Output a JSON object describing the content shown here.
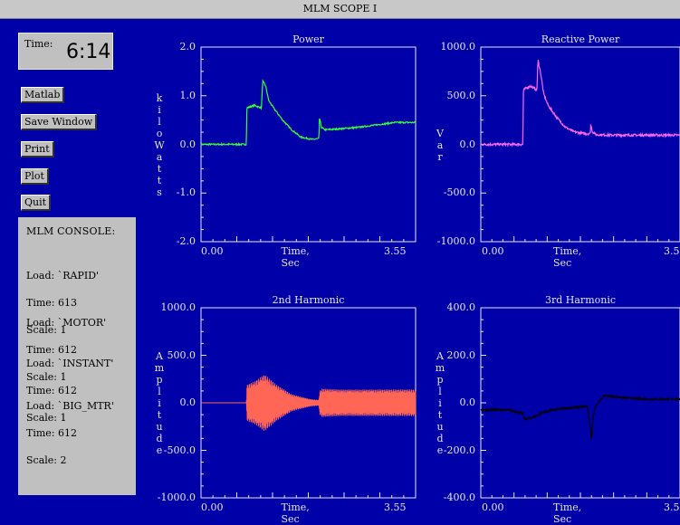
{
  "window": {
    "title": "MLM SCOPE I"
  },
  "clock": {
    "label": "Time:",
    "value": "6:14"
  },
  "buttons": {
    "matlab": "Matlab",
    "save_window": "Save Window",
    "print": "Print",
    "plot": "Plot",
    "quit": "Quit"
  },
  "console": {
    "title": "MLM CONSOLE:",
    "entries": [
      {
        "load": "Load: `RAPID'",
        "time": "Time: 613",
        "scale": "Scale: 1"
      },
      {
        "load": "Load: `MOTOR'",
        "time": "Time: 612",
        "scale": "Scale: 1"
      },
      {
        "load": "Load: `INSTANT'",
        "time": "Time: 612",
        "scale": "Scale: 1"
      },
      {
        "load": "Load: `BIG_MTR'",
        "time": "Time: 612",
        "scale": "Scale: 2"
      }
    ]
  },
  "colors": {
    "background": "#0000a8",
    "power": "#33ff33",
    "reactive_power": "#ff66ff",
    "harmonic_2": "#ff6655",
    "harmonic_3": "#000000"
  },
  "chart_data": [
    {
      "type": "line",
      "title": "Power",
      "xlabel": "Time, Sec",
      "ylabel_letters": [
        "k",
        "i",
        "l",
        "o",
        "W",
        "a",
        "t",
        "t",
        "s"
      ],
      "xlim": [
        0,
        3.55
      ],
      "ylim": [
        -2.0,
        2.0
      ],
      "xtick_labels": [
        "0.00",
        "3.55"
      ],
      "ytick_labels": [
        "2.0",
        "1.0",
        "0.0",
        "-1.0",
        "-2.0"
      ],
      "series": [
        {
          "color": "#33ff33",
          "noise": 0.015,
          "x": [
            0,
            0.75,
            0.76,
            0.88,
            1.0,
            1.02,
            1.07,
            1.12,
            1.2,
            1.35,
            1.5,
            1.65,
            1.85,
            1.95,
            1.96,
            1.99,
            2.05,
            2.3,
            2.6,
            2.9,
            3.2,
            3.55
          ],
          "y": [
            0,
            0,
            0.75,
            0.8,
            0.75,
            1.3,
            1.2,
            0.9,
            0.75,
            0.5,
            0.3,
            0.15,
            0.1,
            0.12,
            0.55,
            0.35,
            0.3,
            0.32,
            0.35,
            0.4,
            0.45,
            0.45
          ]
        }
      ]
    },
    {
      "type": "line",
      "title": "Reactive Power",
      "xlabel": "Time, Sec",
      "ylabel_letters": [
        "V",
        "a",
        "r"
      ],
      "xlim": [
        0,
        3.55
      ],
      "ylim": [
        -1000.0,
        1000.0
      ],
      "xtick_labels": [
        "0.00",
        "3.5"
      ],
      "ytick_labels": [
        "1000.0",
        "500.0",
        "0.0",
        "-500.0",
        "-1000.0"
      ],
      "series": [
        {
          "color": "#ff66ff",
          "noise": 12,
          "x": [
            0,
            0.75,
            0.76,
            0.88,
            1.0,
            1.02,
            1.07,
            1.12,
            1.2,
            1.35,
            1.5,
            1.65,
            1.85,
            1.95,
            1.96,
            1.99,
            2.05,
            2.3,
            2.6,
            2.9,
            3.2,
            3.55
          ],
          "y": [
            0,
            0,
            560,
            600,
            560,
            870,
            720,
            520,
            400,
            280,
            180,
            130,
            110,
            110,
            200,
            130,
            100,
            95,
            95,
            95,
            95,
            95
          ]
        }
      ]
    },
    {
      "type": "line",
      "title": "2nd Harmonic",
      "xlabel": "Time, Sec",
      "ylabel_letters": [
        "A",
        "m",
        "p",
        "l",
        "i",
        "t",
        "u",
        "d",
        "e"
      ],
      "xlim": [
        0,
        3.55
      ],
      "ylim": [
        -1000.0,
        1000.0
      ],
      "xtick_labels": [
        "0.00",
        "3.55"
      ],
      "ytick_labels": [
        "1000.0",
        "500.0",
        "0.0",
        "-500.0",
        "-1000.0"
      ],
      "series": [
        {
          "color": "#ff6655",
          "fill": true,
          "x": [
            0,
            0.75,
            0.76,
            0.9,
            1.05,
            1.25,
            1.5,
            1.8,
            1.95,
            1.96,
            2.0,
            2.3,
            2.7,
            3.1,
            3.55
          ],
          "y": [
            0,
            0,
            190,
            230,
            300,
            190,
            90,
            40,
            30,
            120,
            150,
            140,
            140,
            140,
            140
          ]
        }
      ]
    },
    {
      "type": "line",
      "title": "3rd Harmonic",
      "xlabel": "Time, Sec",
      "ylabel_letters": [
        "A",
        "m",
        "p",
        "l",
        "i",
        "t",
        "u",
        "d",
        "e"
      ],
      "xlim": [
        0,
        3.55
      ],
      "ylim": [
        -400.0,
        400.0
      ],
      "xtick_labels": [
        "0.00",
        "3.5"
      ],
      "ytick_labels": [
        "400.0",
        "200.0",
        "0.0",
        "-200.0",
        "-400.0"
      ],
      "series": [
        {
          "color": "#000000",
          "noise": 4,
          "x": [
            0,
            0.5,
            0.75,
            0.78,
            0.95,
            1.1,
            1.3,
            1.6,
            1.9,
            1.95,
            1.97,
            2.0,
            2.05,
            2.2,
            2.6,
            3.0,
            3.55
          ],
          "y": [
            -30,
            -30,
            -45,
            -70,
            -60,
            -40,
            -30,
            -20,
            -15,
            -100,
            -160,
            -60,
            -10,
            30,
            20,
            15,
            15
          ]
        }
      ]
    }
  ]
}
